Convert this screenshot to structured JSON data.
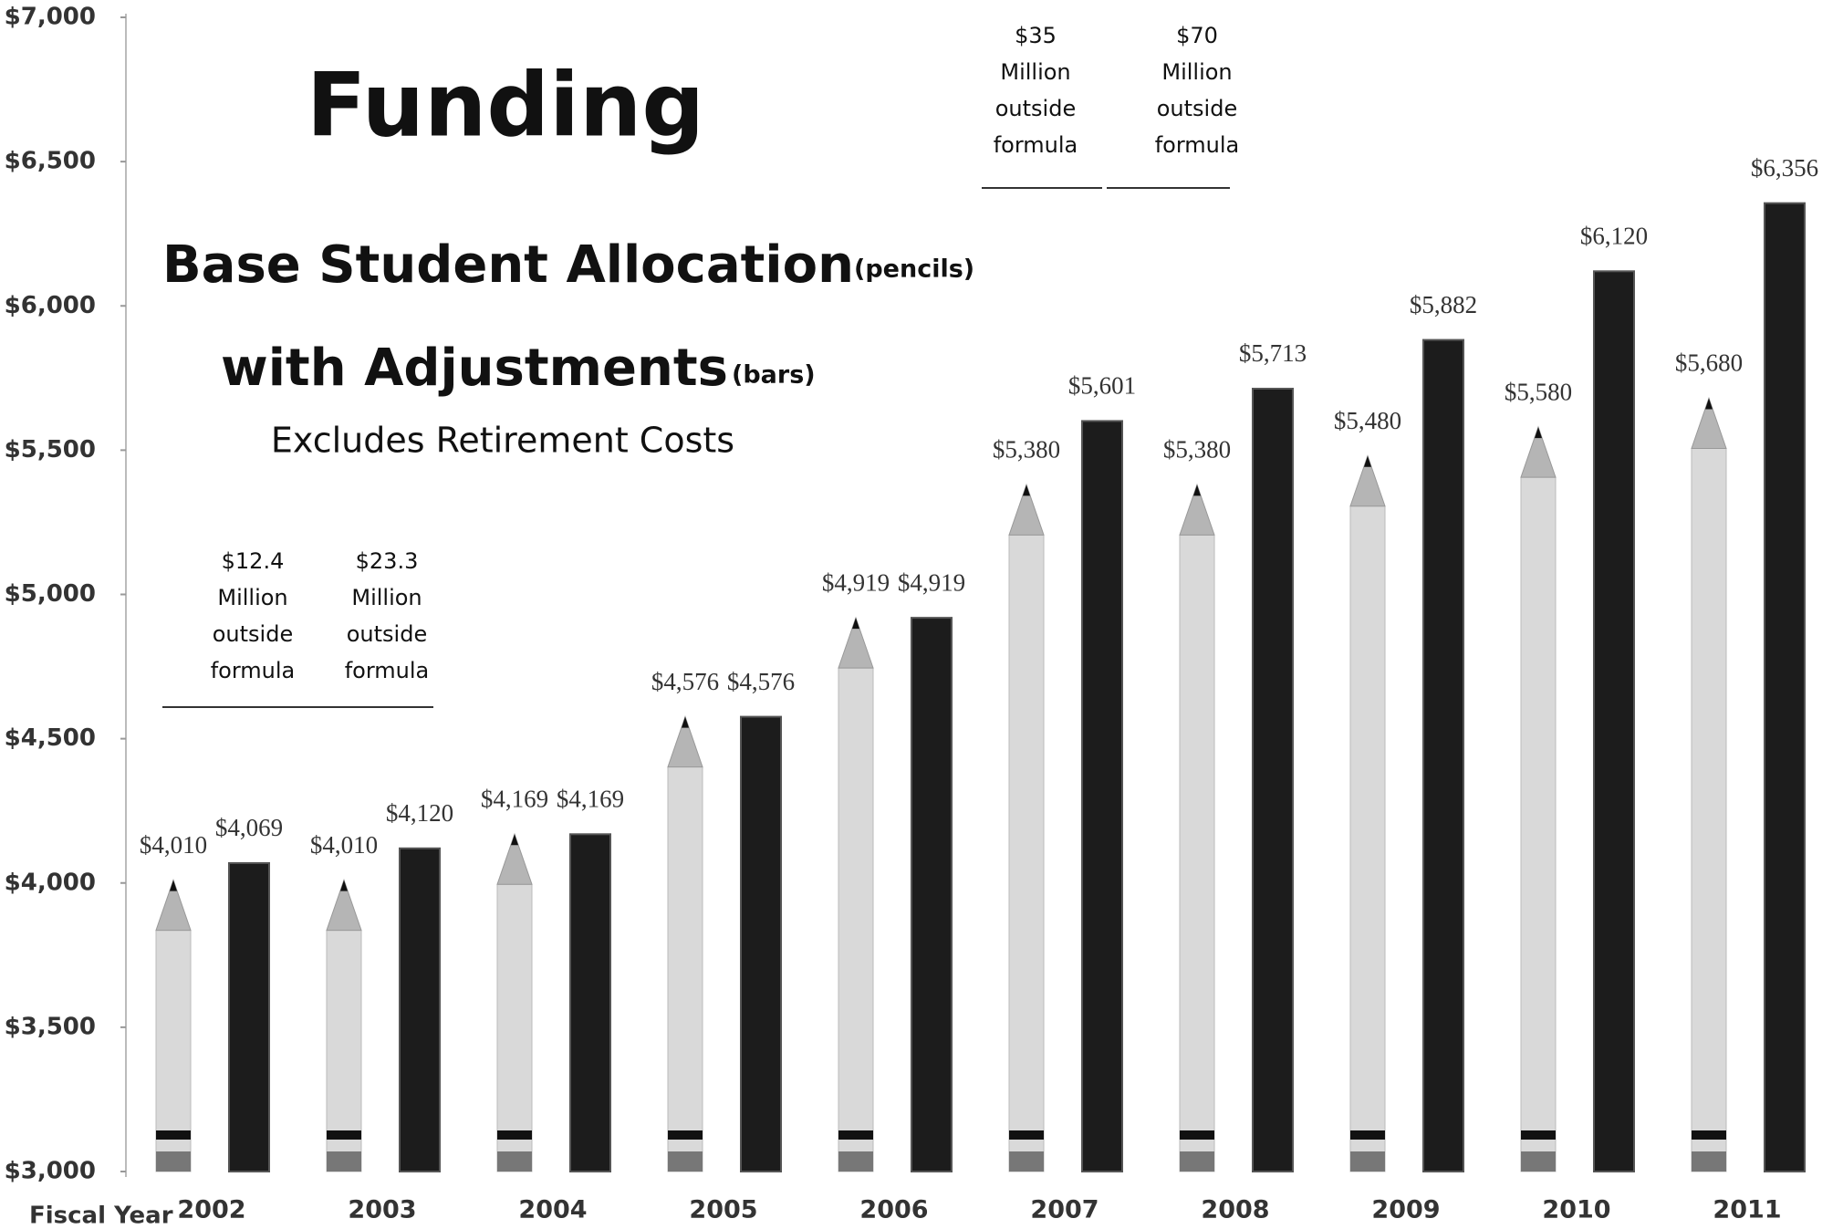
{
  "chart_data": {
    "type": "bar",
    "title": "Funding",
    "x_label": "Fiscal Year",
    "categories": [
      "2002",
      "2003",
      "2004",
      "2005",
      "2006",
      "2007",
      "2008",
      "2009",
      "2010",
      "2011"
    ],
    "series": [
      {
        "name": "Base Student Allocation",
        "note": "(pencils)",
        "color": "#d9d9d9",
        "values": [
          4010,
          4010,
          4169,
          4576,
          4919,
          5380,
          5380,
          5480,
          5580,
          5680
        ],
        "value_labels": [
          "$4,010",
          "$4,010",
          "$4,169",
          "$4,576",
          "$4,919",
          "$5,380",
          "$5,380",
          "$5,480",
          "$5,580",
          "$5,680"
        ]
      },
      {
        "name": "with Adjustments",
        "note": "(bars)",
        "color": "#1c1c1c",
        "values": [
          4069,
          4120,
          4169,
          4576,
          4919,
          5601,
          5713,
          5882,
          6120,
          6356
        ],
        "value_labels": [
          "$4,069",
          "$4,120",
          "$4,169",
          "$4,576",
          "$4,919",
          "$5,601",
          "$5,713",
          "$5,882",
          "$6,120",
          "$6,356"
        ]
      }
    ],
    "subtitle": "Excludes Retirement Costs",
    "annotations": [
      {
        "lines": [
          "$12.4",
          "Million",
          "outside",
          "formula"
        ]
      },
      {
        "lines": [
          "$23.3",
          "Million",
          "outside",
          "formula"
        ]
      },
      {
        "lines": [
          "$35",
          "Million",
          "outside",
          "formula"
        ]
      },
      {
        "lines": [
          "$70",
          "Million",
          "outside",
          "formula"
        ]
      }
    ],
    "ylim": [
      3000,
      7000
    ],
    "yticks": [
      {
        "value": 3000,
        "label": "$3,000"
      },
      {
        "value": 3500,
        "label": "$3,500"
      },
      {
        "value": 4000,
        "label": "$4,000"
      },
      {
        "value": 4500,
        "label": "$4,500"
      },
      {
        "value": 5000,
        "label": "$5,000"
      },
      {
        "value": 5500,
        "label": "$5,500"
      },
      {
        "value": 6000,
        "label": "$6,000"
      },
      {
        "value": 6500,
        "label": "$6,500"
      },
      {
        "value": 7000,
        "label": "$7,000"
      }
    ],
    "grid": false
  }
}
